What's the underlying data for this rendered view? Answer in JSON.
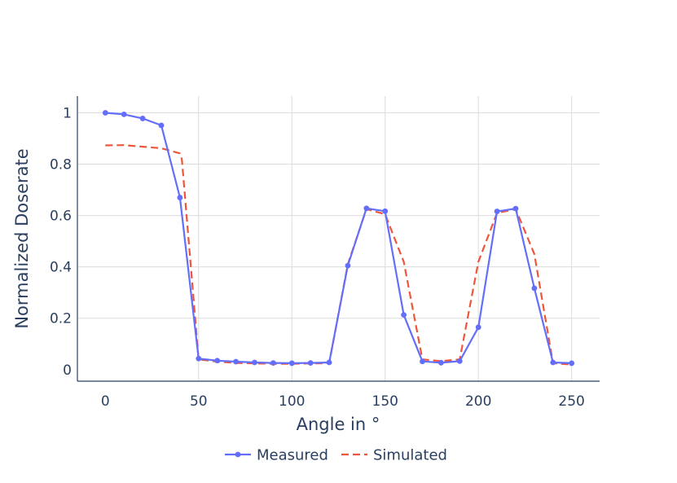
{
  "chart_data": {
    "type": "line",
    "xlabel": "Angle in °",
    "ylabel": "Normalized Doserate",
    "xlim": [
      -15,
      265
    ],
    "ylim": [
      -0.045,
      1.065
    ],
    "grid": true,
    "legend_position": "bottom-center",
    "x_ticks": [
      0,
      50,
      100,
      150,
      200,
      250
    ],
    "x_tick_labels": [
      "0",
      "50",
      "100",
      "150",
      "200",
      "250"
    ],
    "y_ticks": [
      0,
      0.2,
      0.4,
      0.6,
      0.8,
      1
    ],
    "y_tick_labels": [
      "0",
      "0.2",
      "0.4",
      "0.6",
      "0.8",
      "1"
    ],
    "series": [
      {
        "name": "Measured",
        "color": "#636efa",
        "style": "solid-markers",
        "x": [
          0,
          10,
          20,
          30,
          40,
          50,
          60,
          70,
          80,
          90,
          100,
          110,
          120,
          130,
          140,
          150,
          160,
          170,
          180,
          190,
          200,
          210,
          220,
          230,
          240,
          250
        ],
        "y": [
          1.0,
          0.994,
          0.978,
          0.951,
          0.67,
          0.043,
          0.035,
          0.031,
          0.028,
          0.026,
          0.025,
          0.026,
          0.028,
          0.405,
          0.628,
          0.617,
          0.213,
          0.032,
          0.027,
          0.033,
          0.165,
          0.616,
          0.627,
          0.317,
          0.028,
          0.025
        ]
      },
      {
        "name": "Simulated",
        "color": "#ef553b",
        "style": "dash",
        "x": [
          0,
          10,
          20,
          30,
          40,
          41,
          50,
          60,
          70,
          80,
          90,
          100,
          110,
          120,
          130,
          140,
          150,
          160,
          170,
          180,
          190,
          200,
          210,
          220,
          230,
          240,
          250
        ],
        "y": [
          0.873,
          0.874,
          0.868,
          0.862,
          0.842,
          0.82,
          0.04,
          0.031,
          0.026,
          0.024,
          0.023,
          0.023,
          0.024,
          0.025,
          0.41,
          0.625,
          0.605,
          0.42,
          0.04,
          0.033,
          0.04,
          0.42,
          0.61,
          0.625,
          0.45,
          0.025,
          0.02
        ]
      }
    ]
  }
}
